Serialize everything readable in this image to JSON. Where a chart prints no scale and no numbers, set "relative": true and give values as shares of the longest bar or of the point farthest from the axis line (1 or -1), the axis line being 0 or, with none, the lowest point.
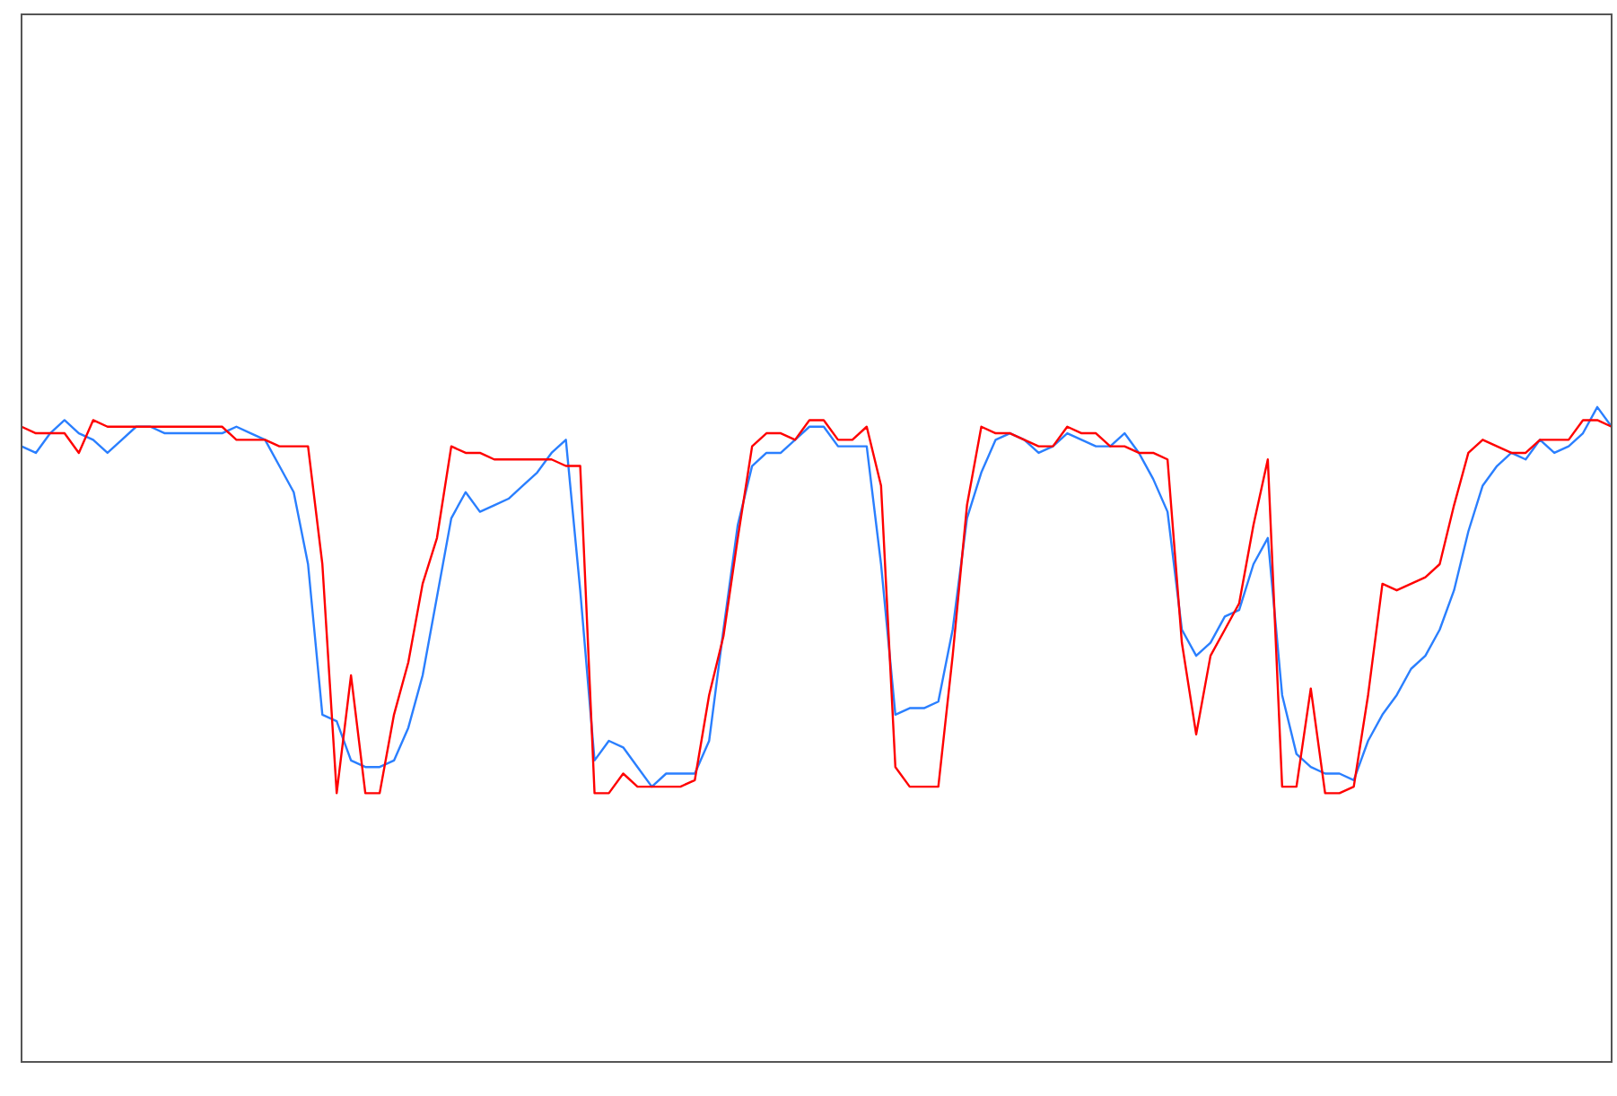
{
  "chart_data": {
    "type": "line",
    "relative": true,
    "marker": "none",
    "line_style": "solid",
    "categories": [
      null,
      null,
      null,
      null,
      null,
      null,
      null,
      null,
      null,
      null,
      null,
      null,
      null,
      null,
      null,
      null,
      null,
      null,
      null,
      null,
      null,
      null,
      null,
      null,
      null,
      null,
      null,
      null,
      null,
      null,
      null,
      null,
      null,
      null,
      null,
      null,
      null,
      null,
      null,
      null,
      null,
      null,
      null,
      null,
      null,
      null,
      null,
      null,
      null,
      null,
      null,
      null,
      null,
      null,
      null,
      null,
      null,
      null,
      null,
      null,
      null,
      null,
      null,
      null,
      null,
      null,
      null,
      null,
      null,
      null,
      null,
      null,
      null,
      null,
      null,
      null,
      null,
      null,
      null,
      null,
      null,
      null,
      null,
      null,
      null,
      null,
      null,
      null,
      null,
      null,
      null,
      null,
      null,
      null,
      null,
      null,
      null,
      null,
      null,
      null,
      null,
      null,
      null,
      null,
      null,
      null,
      null,
      null,
      null,
      null,
      null,
      null
    ],
    "series": [
      {
        "color": "#ff0000",
        "values": [
          0.97,
          0.96,
          0.96,
          0.96,
          0.93,
          0.98,
          0.97,
          0.97,
          0.97,
          0.97,
          0.97,
          0.97,
          0.97,
          0.97,
          0.97,
          0.95,
          0.95,
          0.95,
          0.94,
          0.94,
          0.94,
          0.76,
          0.41,
          0.59,
          0.41,
          0.41,
          0.53,
          0.61,
          0.73,
          0.8,
          0.94,
          0.93,
          0.93,
          0.92,
          0.92,
          0.92,
          0.92,
          0.92,
          0.91,
          0.91,
          0.41,
          0.41,
          0.44,
          0.42,
          0.42,
          0.42,
          0.42,
          0.43,
          0.56,
          0.65,
          0.8,
          0.94,
          0.96,
          0.96,
          0.95,
          0.98,
          0.98,
          0.95,
          0.95,
          0.97,
          0.88,
          0.45,
          0.42,
          0.42,
          0.42,
          0.62,
          0.85,
          0.97,
          0.96,
          0.96,
          0.95,
          0.94,
          0.94,
          0.97,
          0.96,
          0.96,
          0.94,
          0.94,
          0.93,
          0.93,
          0.92,
          0.64,
          0.5,
          0.62,
          0.66,
          0.7,
          0.82,
          0.92,
          0.42,
          0.42,
          0.57,
          0.41,
          0.41,
          0.42,
          0.56,
          0.73,
          0.72,
          0.73,
          0.74,
          0.76,
          0.85,
          0.93,
          0.95,
          0.94,
          0.93,
          0.93,
          0.95,
          0.95,
          0.95,
          0.98,
          0.98,
          0.97
        ]
      },
      {
        "color": "#2a7fff",
        "values": [
          0.94,
          0.93,
          0.96,
          0.98,
          0.96,
          0.95,
          0.93,
          0.95,
          0.97,
          0.97,
          0.96,
          0.96,
          0.96,
          0.96,
          0.96,
          0.97,
          0.96,
          0.95,
          0.91,
          0.87,
          0.76,
          0.53,
          0.52,
          0.46,
          0.45,
          0.45,
          0.46,
          0.51,
          0.59,
          0.71,
          0.83,
          0.87,
          0.84,
          0.85,
          0.86,
          0.88,
          0.9,
          0.93,
          0.95,
          0.72,
          0.46,
          0.49,
          0.48,
          0.45,
          0.42,
          0.44,
          0.44,
          0.44,
          0.49,
          0.66,
          0.82,
          0.91,
          0.93,
          0.93,
          0.95,
          0.97,
          0.97,
          0.94,
          0.94,
          0.94,
          0.76,
          0.53,
          0.54,
          0.54,
          0.55,
          0.66,
          0.83,
          0.9,
          0.95,
          0.96,
          0.95,
          0.93,
          0.94,
          0.96,
          0.95,
          0.94,
          0.94,
          0.96,
          0.93,
          0.89,
          0.84,
          0.66,
          0.62,
          0.64,
          0.68,
          0.69,
          0.76,
          0.8,
          0.56,
          0.47,
          0.45,
          0.44,
          0.44,
          0.43,
          0.49,
          0.53,
          0.56,
          0.6,
          0.62,
          0.66,
          0.72,
          0.81,
          0.88,
          0.91,
          0.93,
          0.92,
          0.95,
          0.93,
          0.94,
          0.96,
          1,
          0.97
        ]
      }
    ]
  }
}
